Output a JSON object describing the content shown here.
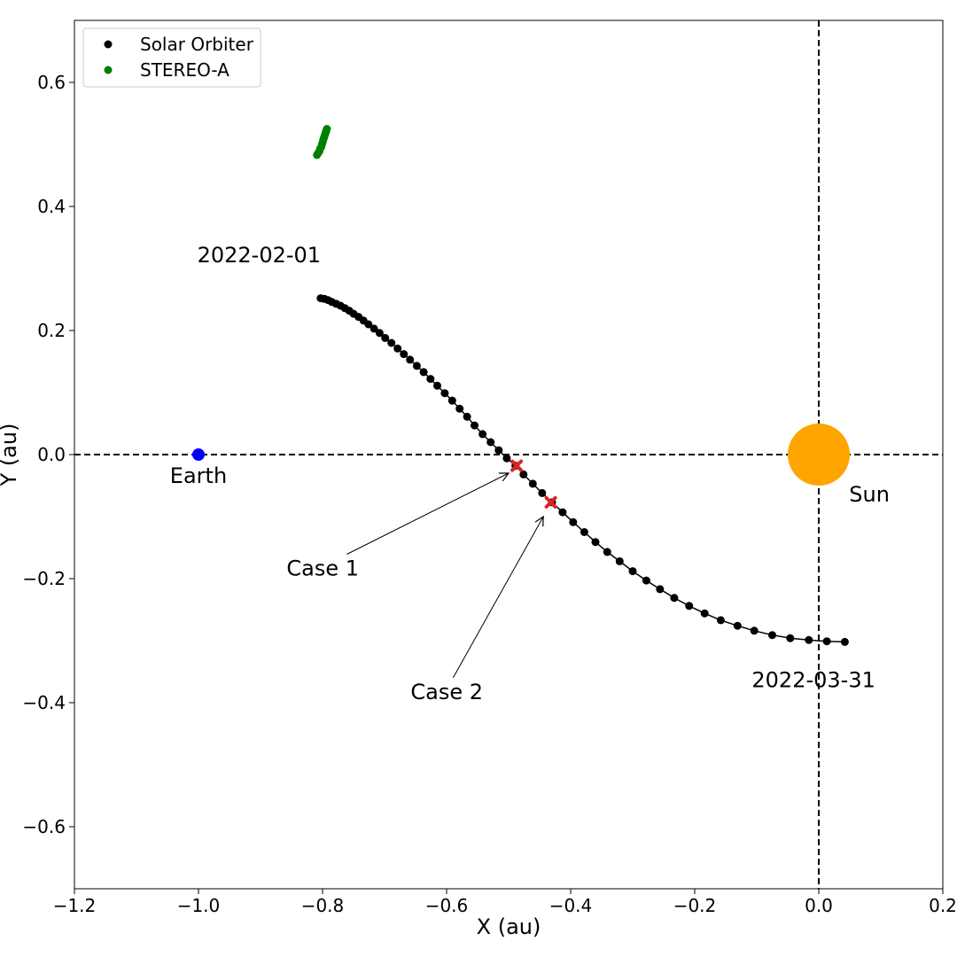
{
  "chart_data": {
    "type": "scatter",
    "xlabel": "X (au)",
    "ylabel": "Y (au)",
    "xlim": [
      -1.2,
      0.2
    ],
    "ylim": [
      -0.7,
      0.7
    ],
    "xticks": [
      -1.2,
      -1.0,
      -0.8,
      -0.6,
      -0.4,
      -0.2,
      0.0,
      0.2
    ],
    "yticks": [
      -0.6,
      -0.4,
      -0.2,
      0.0,
      0.2,
      0.4,
      0.6
    ],
    "xtick_labels": [
      "−1.2",
      "−1.0",
      "−0.8",
      "−0.6",
      "−0.4",
      "−0.2",
      "0.0",
      "0.2"
    ],
    "ytick_labels": [
      "−0.6",
      "−0.4",
      "−0.2",
      "0.0",
      "0.2",
      "0.4",
      "0.6"
    ],
    "grid": false,
    "legend_position": "top-left",
    "reference_lines": {
      "x": 0.0,
      "y": 0.0,
      "style": "dashed"
    },
    "series": [
      {
        "name": "Solar Orbiter",
        "color": "#000000",
        "marker": "circle",
        "connected": true,
        "x": [
          -0.803,
          -0.797,
          -0.791,
          -0.785,
          -0.778,
          -0.771,
          -0.764,
          -0.757,
          -0.75,
          -0.742,
          -0.734,
          -0.726,
          -0.717,
          -0.708,
          -0.699,
          -0.689,
          -0.679,
          -0.669,
          -0.659,
          -0.648,
          -0.637,
          -0.626,
          -0.615,
          -0.603,
          -0.591,
          -0.579,
          -0.567,
          -0.555,
          -0.542,
          -0.529,
          -0.516,
          -0.503,
          -0.489,
          -0.476,
          -0.461,
          -0.446,
          -0.43,
          -0.413,
          -0.396,
          -0.378,
          -0.36,
          -0.341,
          -0.321,
          -0.3,
          -0.278,
          -0.256,
          -0.233,
          -0.209,
          -0.184,
          -0.158,
          -0.131,
          -0.104,
          -0.075,
          -0.046,
          -0.016,
          0.013,
          0.042
        ],
        "y": [
          0.252,
          0.251,
          0.249,
          0.246,
          0.243,
          0.24,
          0.236,
          0.232,
          0.227,
          0.222,
          0.216,
          0.21,
          0.203,
          0.196,
          0.188,
          0.18,
          0.171,
          0.162,
          0.153,
          0.143,
          0.133,
          0.122,
          0.111,
          0.099,
          0.087,
          0.074,
          0.061,
          0.047,
          0.033,
          0.02,
          0.007,
          -0.006,
          -0.018,
          -0.032,
          -0.047,
          -0.062,
          -0.077,
          -0.093,
          -0.109,
          -0.125,
          -0.141,
          -0.157,
          -0.172,
          -0.188,
          -0.203,
          -0.217,
          -0.231,
          -0.244,
          -0.256,
          -0.267,
          -0.276,
          -0.284,
          -0.291,
          -0.296,
          -0.299,
          -0.301,
          -0.302
        ]
      },
      {
        "name": "STEREO-A",
        "color": "#008000",
        "marker": "circle",
        "connected": false,
        "x": [
          -0.809,
          -0.807,
          -0.805,
          -0.804,
          -0.802,
          -0.801,
          -0.8,
          -0.799,
          -0.798,
          -0.797,
          -0.796,
          -0.795,
          -0.794,
          -0.793
        ],
        "y": [
          0.483,
          0.486,
          0.489,
          0.493,
          0.496,
          0.5,
          0.503,
          0.507,
          0.51,
          0.513,
          0.516,
          0.519,
          0.522,
          0.525
        ]
      }
    ],
    "points": [
      {
        "label": "Earth",
        "x": -1.0,
        "y": 0.0,
        "color": "#0000ff"
      },
      {
        "label": "Sun",
        "x": 0.0,
        "y": 0.0,
        "color": "#ffa500",
        "radius_au": 0.05
      }
    ],
    "case_markers": [
      {
        "label": "Case 1",
        "x": -0.487,
        "y": -0.018,
        "color": "#d62728"
      },
      {
        "label": "Case 2",
        "x": -0.432,
        "y": -0.077,
        "color": "#d62728"
      }
    ],
    "annotations": [
      {
        "text": "2022-02-01",
        "x": -1.002,
        "y": 0.31
      },
      {
        "text": "2022-03-31",
        "x": -0.108,
        "y": -0.375
      },
      {
        "text": "Earth",
        "x": -1.046,
        "y": -0.046
      },
      {
        "text": "Sun",
        "x": 0.049,
        "y": -0.076
      },
      {
        "text": "Case 1",
        "x": -0.858,
        "y": -0.195,
        "arrow_to": [
          -0.5,
          -0.03
        ]
      },
      {
        "text": "Case 2",
        "x": -0.658,
        "y": -0.394,
        "arrow_to": [
          -0.444,
          -0.1
        ]
      }
    ]
  }
}
